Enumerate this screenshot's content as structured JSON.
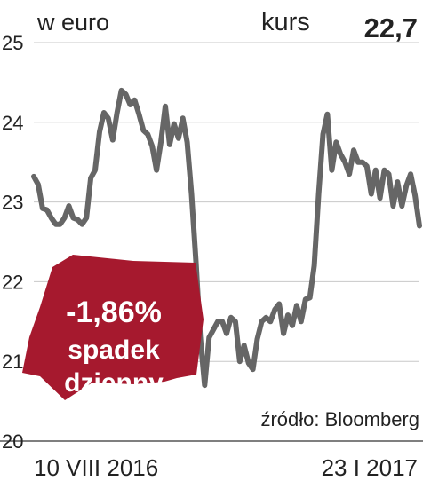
{
  "header": {
    "unit": "w euro",
    "kurs_label": "kurs",
    "kurs_value": "22,7"
  },
  "badge": {
    "change": "-1,86%",
    "line1": "spadek",
    "line2": "dzienny",
    "color": "#a6192e"
  },
  "source": "źródło: Bloomberg",
  "chart_data": {
    "type": "line",
    "title": "",
    "xlabel": "",
    "ylabel": "w euro",
    "ylim": [
      20,
      25
    ],
    "yticks": [
      "20",
      "21",
      "22",
      "23",
      "24",
      "25"
    ],
    "x_start_label": "10 VIII 2016",
    "x_end_label": "23 I 2017",
    "grid": true,
    "line_color": "#666666",
    "series": [
      {
        "values": [
          23.32,
          23.22,
          22.92,
          22.9,
          22.8,
          22.72,
          22.72,
          22.8,
          22.95,
          22.8,
          22.78,
          22.72,
          22.8,
          23.3,
          23.4,
          23.88,
          24.12,
          24.05,
          23.78,
          24.12,
          24.4,
          24.35,
          24.22,
          24.28,
          24.1,
          23.9,
          23.85,
          23.7,
          23.4,
          23.75,
          24.2,
          23.72,
          23.98,
          23.8,
          24.05,
          23.75,
          23.1,
          22.25,
          21.3,
          20.7,
          21.3,
          21.4,
          21.5,
          21.5,
          21.35,
          21.55,
          21.5,
          21.0,
          21.2,
          20.98,
          20.9,
          21.28,
          21.5,
          21.55,
          21.5,
          21.65,
          21.72,
          21.35,
          21.58,
          21.45,
          21.7,
          21.5,
          21.78,
          21.8,
          22.2,
          23.1,
          23.85,
          24.1,
          23.4,
          23.75,
          23.6,
          23.5,
          23.35,
          23.65,
          23.5,
          23.5,
          23.45,
          23.1,
          23.4,
          23.05,
          23.4,
          23.35,
          22.95,
          23.25,
          22.95,
          23.2,
          23.35,
          23.08,
          22.7
        ]
      }
    ]
  }
}
